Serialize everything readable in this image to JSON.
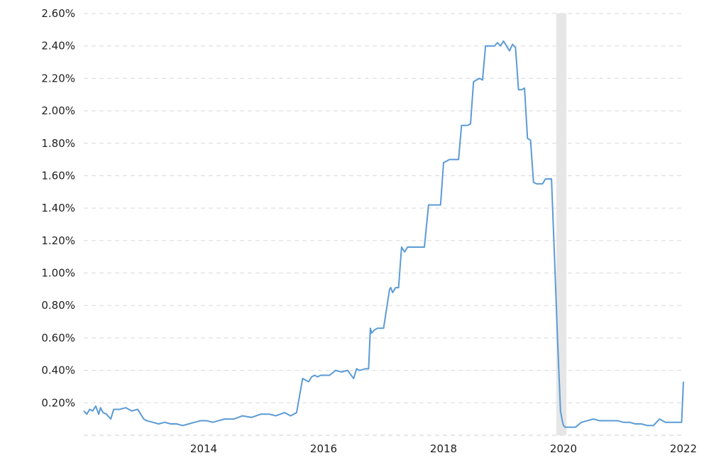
{
  "chart_data": {
    "type": "line",
    "title": "",
    "xlabel": "",
    "ylabel": "",
    "xlim": [
      2012.0,
      2022.0
    ],
    "ylim": [
      0.0,
      2.6
    ],
    "grid": true,
    "legend": "none",
    "line_color": "#5b9bd5",
    "recession_band_color": "#e6e6e6",
    "recession_band": [
      2019.88,
      2020.05
    ],
    "y_ticks": [
      0.2,
      0.4,
      0.6,
      0.8,
      1.0,
      1.2,
      1.4,
      1.6,
      1.8,
      2.0,
      2.2,
      2.4,
      2.6
    ],
    "y_tick_labels": [
      "0.20%",
      "0.40%",
      "0.60%",
      "0.80%",
      "1.00%",
      "1.20%",
      "1.40%",
      "1.60%",
      "1.80%",
      "2.00%",
      "2.20%",
      "2.40%",
      "2.60%"
    ],
    "x_ticks": [
      2014,
      2016,
      2018,
      2020,
      2022
    ],
    "x_tick_labels": [
      "2014",
      "2016",
      "2018",
      "2020",
      "2022"
    ],
    "series": [
      {
        "x": [
          2012.0,
          2012.05,
          2012.1,
          2012.15,
          2012.2,
          2012.25,
          2012.28,
          2012.32,
          2012.38,
          2012.45,
          2012.5,
          2012.55,
          2012.6,
          2012.7,
          2012.8,
          2012.9,
          2013.0,
          2013.05,
          2013.15,
          2013.25,
          2013.35,
          2013.45,
          2013.55,
          2013.65,
          2013.75,
          2013.85,
          2013.95,
          2014.05,
          2014.15,
          2014.25,
          2014.35,
          2014.5,
          2014.65,
          2014.8,
          2014.95,
          2015.1,
          2015.2,
          2015.35,
          2015.45,
          2015.55,
          2015.65,
          2015.75,
          2015.8,
          2015.85,
          2015.9,
          2015.95,
          2016.0,
          2016.1,
          2016.2,
          2016.3,
          2016.4,
          2016.5,
          2016.55,
          2016.6,
          2016.7,
          2016.75,
          2016.78,
          2016.8,
          2016.85,
          2016.9,
          2017.0,
          2017.1,
          2017.12,
          2017.15,
          2017.2,
          2017.25,
          2017.3,
          2017.35,
          2017.4,
          2017.45,
          2017.5,
          2017.55,
          2017.62,
          2017.68,
          2017.75,
          2017.85,
          2017.9,
          2017.95,
          2018.0,
          2018.1,
          2018.2,
          2018.25,
          2018.3,
          2018.35,
          2018.4,
          2018.45,
          2018.5,
          2018.55,
          2018.6,
          2018.65,
          2018.7,
          2018.75,
          2018.8,
          2018.85,
          2018.9,
          2018.95,
          2019.0,
          2019.05,
          2019.1,
          2019.15,
          2019.2,
          2019.25,
          2019.3,
          2019.35,
          2019.4,
          2019.45,
          2019.5,
          2019.55,
          2019.6,
          2019.65,
          2019.7,
          2019.75,
          2019.8,
          2019.85,
          2019.9,
          2019.95,
          2019.98,
          2020.0,
          2020.03,
          2020.05,
          2020.1,
          2020.2,
          2020.3,
          2020.4,
          2020.5,
          2020.6,
          2020.7,
          2020.8,
          2020.9,
          2021.0,
          2021.1,
          2021.2,
          2021.3,
          2021.4,
          2021.5,
          2021.6,
          2021.7,
          2021.8,
          2021.9,
          2021.97,
          2022.0
        ],
        "y": [
          0.15,
          0.13,
          0.16,
          0.15,
          0.18,
          0.13,
          0.17,
          0.14,
          0.13,
          0.1,
          0.16,
          0.16,
          0.16,
          0.17,
          0.15,
          0.16,
          0.1,
          0.09,
          0.08,
          0.07,
          0.08,
          0.07,
          0.07,
          0.06,
          0.07,
          0.08,
          0.09,
          0.09,
          0.08,
          0.09,
          0.1,
          0.1,
          0.12,
          0.11,
          0.13,
          0.13,
          0.12,
          0.14,
          0.12,
          0.14,
          0.35,
          0.33,
          0.36,
          0.37,
          0.36,
          0.37,
          0.37,
          0.37,
          0.4,
          0.39,
          0.4,
          0.35,
          0.41,
          0.4,
          0.41,
          0.41,
          0.66,
          0.63,
          0.65,
          0.66,
          0.66,
          0.9,
          0.91,
          0.88,
          0.91,
          0.91,
          1.16,
          1.13,
          1.16,
          1.16,
          1.16,
          1.16,
          1.16,
          1.16,
          1.42,
          1.42,
          1.42,
          1.42,
          1.68,
          1.7,
          1.7,
          1.7,
          1.91,
          1.91,
          1.91,
          1.92,
          2.18,
          2.19,
          2.2,
          2.19,
          2.4,
          2.4,
          2.4,
          2.4,
          2.42,
          2.4,
          2.43,
          2.4,
          2.37,
          2.41,
          2.39,
          2.13,
          2.13,
          2.14,
          1.83,
          1.82,
          1.56,
          1.55,
          1.55,
          1.55,
          1.58,
          1.58,
          1.58,
          1.1,
          0.6,
          0.15,
          0.09,
          0.06,
          0.05,
          0.05,
          0.05,
          0.05,
          0.08,
          0.09,
          0.1,
          0.09,
          0.09,
          0.09,
          0.09,
          0.08,
          0.08,
          0.07,
          0.07,
          0.06,
          0.06,
          0.1,
          0.08,
          0.08,
          0.08,
          0.08,
          0.33
        ]
      }
    ]
  }
}
